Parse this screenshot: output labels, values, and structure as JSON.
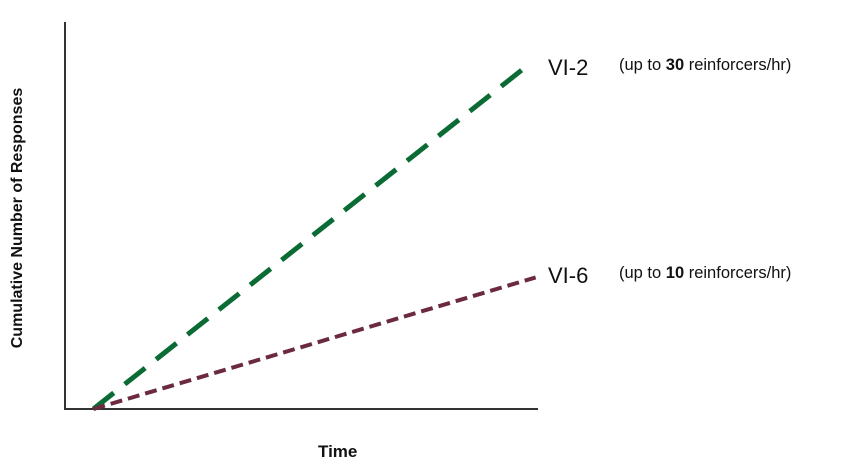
{
  "chart_data": {
    "type": "line",
    "title": "",
    "xlabel": "Time",
    "ylabel": "Cumulative Number of Responses",
    "xlim": [
      0,
      100
    ],
    "ylim": [
      0,
      100
    ],
    "grid": false,
    "series": [
      {
        "name": "VI-2",
        "note_prefix": "(up to ",
        "note_bold": "30",
        "note_suffix": " reinforcers/hr)",
        "color": "#0b6b35",
        "dash": "long-dash",
        "x": [
          6,
          97
        ],
        "y": [
          0,
          88
        ]
      },
      {
        "name": "VI-6",
        "note_prefix": "(up to ",
        "note_bold": "10",
        "note_suffix": " reinforcers/hr)",
        "color": "#6b2a40",
        "dash": "short-dash",
        "x": [
          6,
          99.5
        ],
        "y": [
          0,
          34
        ]
      }
    ]
  }
}
